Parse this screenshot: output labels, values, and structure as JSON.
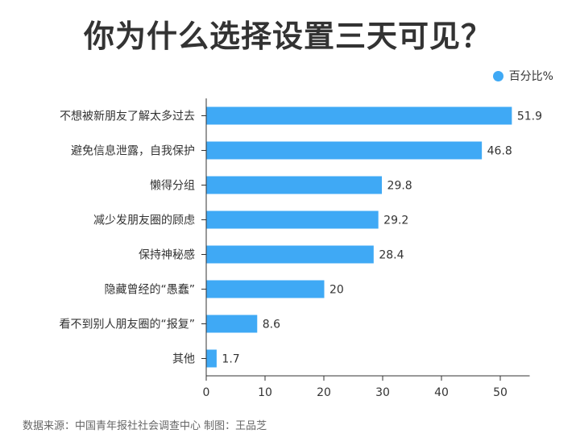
{
  "chart_data": {
    "type": "bar",
    "orientation": "horizontal",
    "title": "你为什么选择设置三天可见？",
    "categories": [
      "不想被新朋友了解太多过去",
      "避免信息泄露，自我保护",
      "懒得分组",
      "减少发朋友圈的顾虑",
      "保持神秘感",
      "隐藏曾经的“愚蠢”",
      "看不到别人朋友圈的“报复”",
      "其他"
    ],
    "series": [
      {
        "name": "百分比%",
        "values": [
          51.9,
          46.8,
          29.8,
          29.2,
          28.4,
          20,
          8.6,
          1.7
        ],
        "color": "#3fa9f5"
      }
    ],
    "xlim": [
      0,
      55
    ],
    "xticks": [
      0,
      10,
      20,
      30,
      40,
      50
    ],
    "grid": false,
    "legend_position": "top-right"
  },
  "source": "数据来源：中国青年报社社会调查中心 制图：王品芝"
}
